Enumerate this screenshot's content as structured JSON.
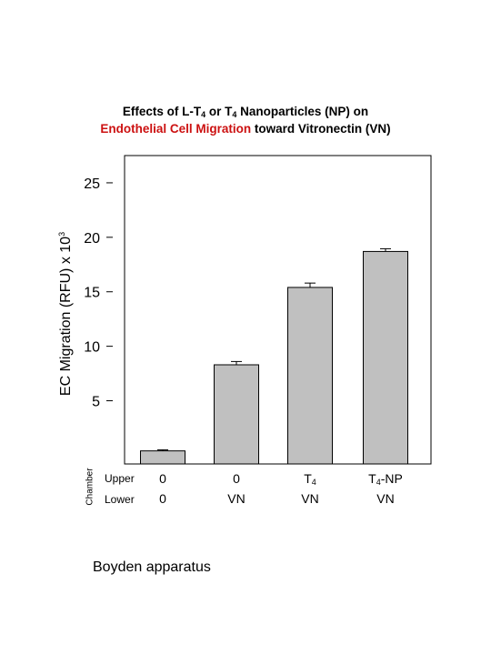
{
  "title": {
    "line1": {
      "pre": "Effects of L-T",
      "sub1": "4",
      "mid": " or T",
      "sub2": "4",
      "post": " Nanoparticles (NP) on"
    },
    "line2": {
      "accent_text": "Endothelial Cell Migration",
      "rest": " toward Vitronectin (VN)"
    },
    "accent_color": "#cc1111"
  },
  "y_axis": {
    "label": "EC Migration (RFU) x 10",
    "exponent": "3"
  },
  "chamber_label": "Chamber",
  "rows": {
    "upper": "Upper",
    "lower": "Lower"
  },
  "categories": [
    {
      "upper": "0",
      "upper_sub": "",
      "upper_suffix": "",
      "lower": "0"
    },
    {
      "upper": "0",
      "upper_sub": "",
      "upper_suffix": "",
      "lower": "VN"
    },
    {
      "upper": "T",
      "upper_sub": "4",
      "upper_suffix": "",
      "lower": "VN"
    },
    {
      "upper": "T",
      "upper_sub": "4",
      "upper_suffix": "-NP",
      "lower": "VN"
    }
  ],
  "footer": "Boyden apparatus",
  "chart_data": {
    "type": "bar",
    "categories": [
      "0 / 0",
      "0 / VN",
      "T4 / VN",
      "T4-NP / VN"
    ],
    "values": [
      0.4,
      8.3,
      15.4,
      18.7
    ],
    "errors": [
      0.1,
      0.3,
      0.4,
      0.25
    ],
    "ylim": [
      -0.8,
      27.5
    ],
    "yticks": [
      5,
      10,
      15,
      20,
      25
    ],
    "bar_color": "#c0c0c0",
    "error_bar_direction": "upper",
    "grid": false,
    "legend": "none"
  }
}
